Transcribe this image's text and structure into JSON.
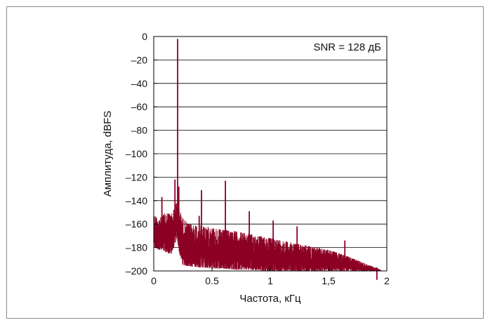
{
  "chart_data": {
    "type": "line",
    "title": "",
    "xlabel": "Частота, кГц",
    "ylabel": "Амплитуда, dBFS",
    "annotation": "SNR = 128 дБ",
    "xlim": [
      0,
      2
    ],
    "ylim": [
      -200,
      0
    ],
    "x_ticks": [
      0,
      0.5,
      1,
      1.5,
      2
    ],
    "x_tick_labels": [
      "0",
      "0.5",
      "1",
      "1,5",
      "2"
    ],
    "y_ticks": [
      0,
      -20,
      -40,
      -60,
      -80,
      -100,
      -120,
      -140,
      -160,
      -180,
      -200
    ],
    "y_tick_labels": [
      "0",
      "–20",
      "–40",
      "–60",
      "–80",
      "–100",
      "–120",
      "–140",
      "–160",
      "–180",
      "–200"
    ],
    "grid": "horizontal",
    "legend": "none",
    "colors": {
      "series": "#8b0023",
      "grid": "#000000",
      "frame": "#8a8a8a"
    },
    "series": [
      {
        "noise_upper_envelope": {
          "x": [
            0,
            0.05,
            0.1,
            0.15,
            0.18,
            0.2,
            0.22,
            0.25,
            0.3,
            0.4,
            0.5,
            0.6,
            0.7,
            0.8,
            0.9,
            1.0,
            1.1,
            1.2,
            1.3,
            1.4,
            1.5,
            1.6,
            1.7,
            1.8,
            1.9,
            1.95
          ],
          "y": [
            -152,
            -155,
            -150,
            -151,
            -146,
            -140,
            -147,
            -155,
            -160,
            -161,
            -163,
            -165,
            -166,
            -168,
            -170,
            -172,
            -174,
            -176,
            -178,
            -180,
            -182,
            -185,
            -189,
            -193,
            -197,
            -199
          ]
        },
        "noise_lower_envelope": {
          "x": [
            0,
            0.05,
            0.1,
            0.15,
            0.18,
            0.2,
            0.22,
            0.25,
            0.3,
            0.4,
            0.5,
            0.6,
            0.7,
            0.8,
            1.0,
            1.2,
            1.4,
            1.6,
            1.8,
            1.95
          ],
          "y": [
            -180,
            -182,
            -184,
            -186,
            -178,
            -172,
            -185,
            -195,
            -196,
            -197,
            -198,
            -198,
            -199,
            -199,
            -200,
            -200,
            -200,
            -200,
            -200,
            -200
          ]
        },
        "peaks": [
          {
            "x": 0.205,
            "y": -2
          },
          {
            "x": 0.182,
            "y": -122
          },
          {
            "x": 0.215,
            "y": -128
          },
          {
            "x": 0.07,
            "y": -137
          },
          {
            "x": 0.41,
            "y": -131
          },
          {
            "x": 0.615,
            "y": -123
          },
          {
            "x": 0.39,
            "y": -153
          },
          {
            "x": 0.82,
            "y": -149
          },
          {
            "x": 1.025,
            "y": -157
          },
          {
            "x": 1.23,
            "y": -162
          },
          {
            "x": 1.64,
            "y": -174
          },
          {
            "x": 1.545,
            "y": -190
          },
          {
            "x": 1.915,
            "y": -197
          }
        ]
      }
    ]
  }
}
